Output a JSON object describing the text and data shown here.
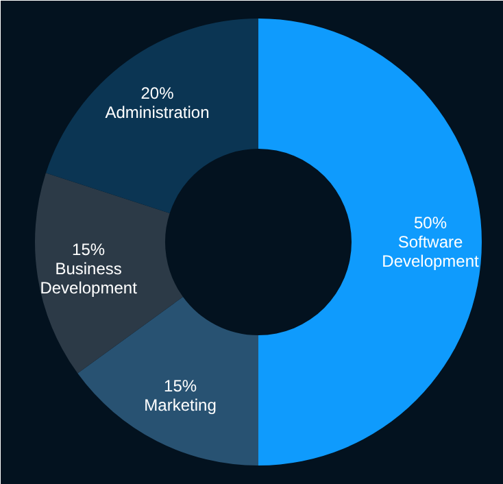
{
  "chart_data": {
    "type": "donut",
    "categories": [
      "Software Development",
      "Marketing",
      "Business Development",
      "Administration"
    ],
    "values": [
      50,
      15,
      15,
      20
    ],
    "value_labels": [
      "50%",
      "15%",
      "15%",
      "20%"
    ],
    "colors": [
      "#0f9bfd",
      "#285272",
      "#2c3a47",
      "#0b3553"
    ]
  }
}
